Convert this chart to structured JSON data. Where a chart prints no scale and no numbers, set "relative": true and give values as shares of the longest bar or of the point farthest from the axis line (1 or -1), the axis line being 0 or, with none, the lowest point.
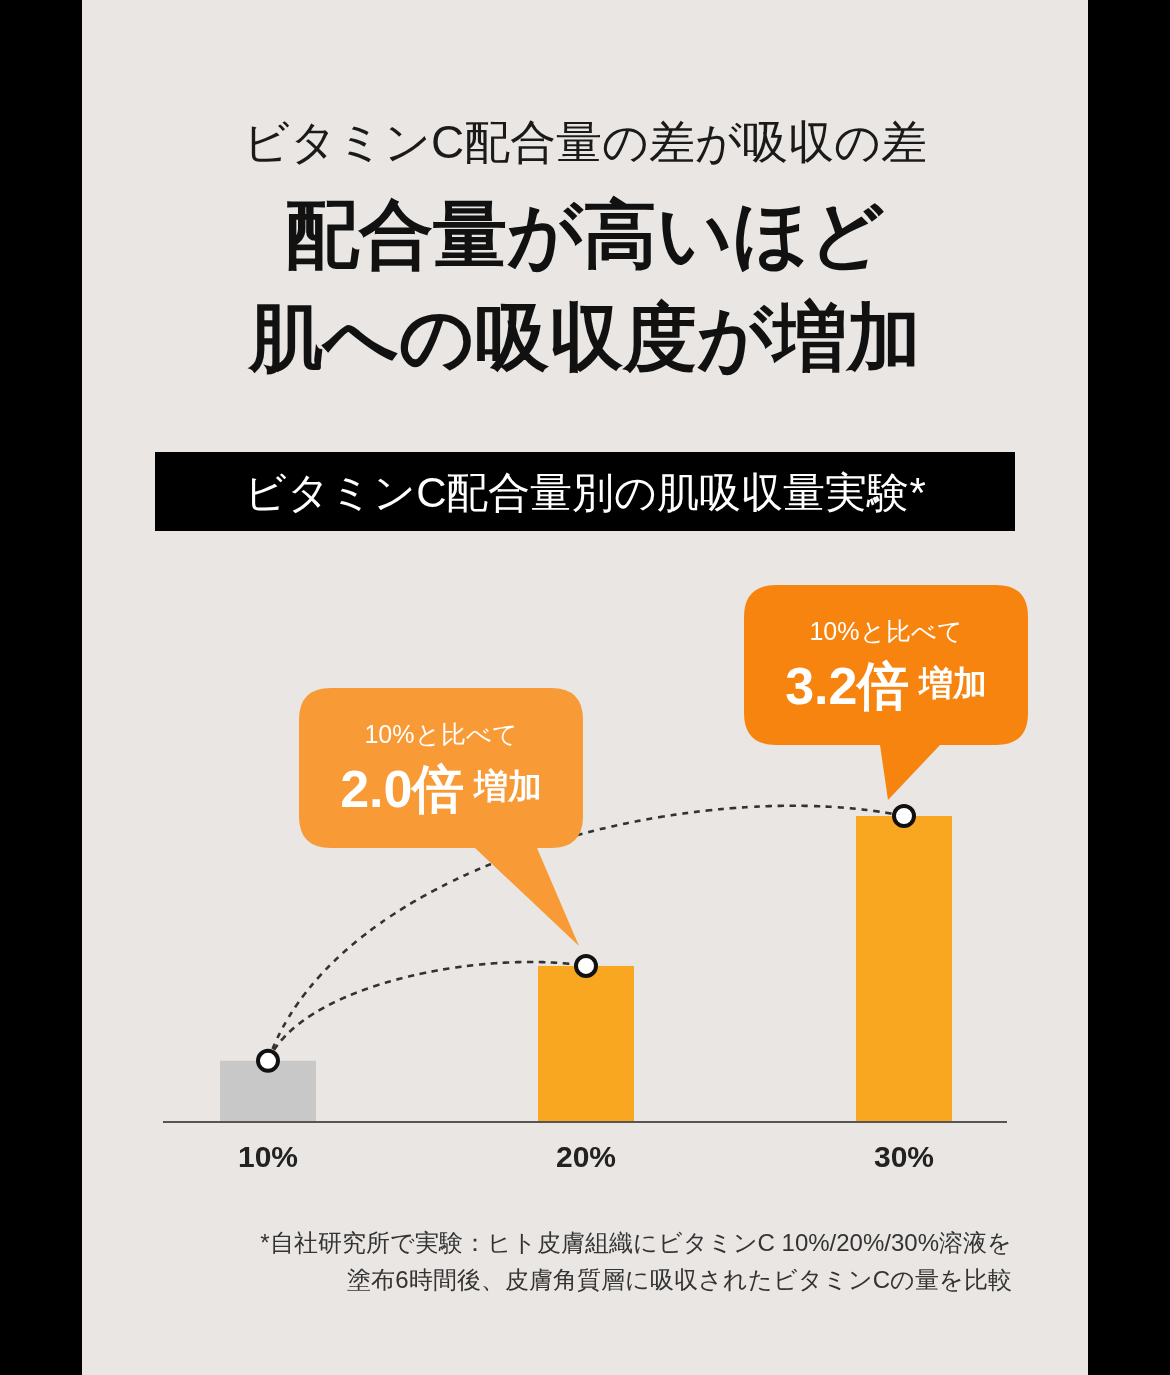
{
  "chart_data": [
    {
      "type": "other",
      "subtitle": "ビタミンC配合量の差が吸収の差",
      "title": "配合量が高いほど肌への吸収度が増加"
    },
    {
      "type": "bar",
      "title": "ビタミンC配合量別の肌吸収量実験*",
      "categories": [
        "10%",
        "20%",
        "30%"
      ],
      "relative": true,
      "marker": "circle",
      "series": [
        {
          "type": "bar",
          "values": [
            0.2,
            0.51,
            1
          ],
          "colors": [
            "#c9c8c8",
            "#f9a620",
            "#f9a620"
          ]
        },
        {
          "type": "scatter",
          "x": [
            "10%",
            "20%",
            "30%"
          ],
          "values": [
            0.2,
            0.51,
            1
          ],
          "color": "#ffffff"
        }
      ],
      "annotations": [
        {
          "text": "10%と比べて\n2.0倍 増加",
          "x": "20%",
          "y": 0.51
        },
        {
          "text": "10%と比べて\n3.2倍 増加",
          "x": "30%",
          "y": 1
        },
        "*自社研究所で実験：ヒト皮膚組織にビタミンC 10%/20%/30%溶液を塗布6時間後、皮膚角質層に吸収されたビタミンCの量を比較"
      ]
    }
  ]
}
